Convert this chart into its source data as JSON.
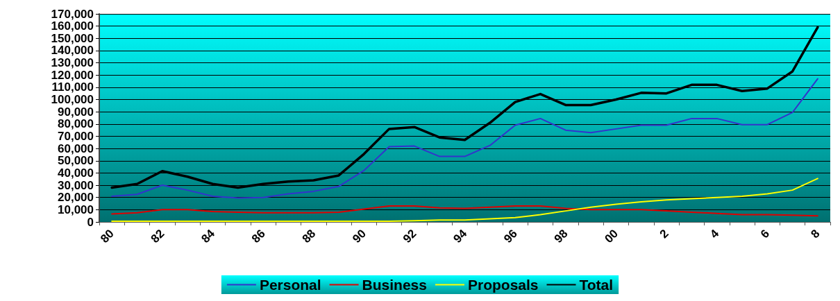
{
  "chart_data": {
    "type": "line",
    "categories": [
      "80",
      null,
      "82",
      null,
      "84",
      null,
      "86",
      null,
      "88",
      null,
      "90",
      null,
      "92",
      null,
      "94",
      null,
      "96",
      null,
      "98",
      null,
      "00",
      null,
      "2",
      null,
      "4",
      null,
      "6",
      null,
      "8"
    ],
    "series": [
      {
        "name": "Personal",
        "color": "#3333cc",
        "values": [
          21000,
          22500,
          30000,
          26000,
          21000,
          19500,
          20000,
          23000,
          25000,
          29000,
          42000,
          61500,
          62000,
          53500,
          53500,
          62500,
          79000,
          84500,
          75000,
          73000,
          76000,
          79000,
          79000,
          84500,
          84500,
          79500,
          79500,
          89500,
          117000
        ]
      },
      {
        "name": "Business",
        "color": "#e00000",
        "values": [
          6500,
          7500,
          10000,
          10000,
          8500,
          8000,
          7500,
          7500,
          7500,
          8000,
          10500,
          13000,
          13000,
          11500,
          11000,
          12000,
          13000,
          13000,
          11000,
          10000,
          10000,
          10000,
          9000,
          8000,
          7000,
          6000,
          6000,
          5500,
          5000
        ]
      },
      {
        "name": "Proposals",
        "color": "#ffff00",
        "values": [
          500,
          500,
          500,
          500,
          500,
          500,
          500,
          500,
          500,
          500,
          500,
          500,
          1000,
          1500,
          1500,
          2500,
          3500,
          6000,
          9000,
          12000,
          14500,
          16500,
          18000,
          19000,
          20000,
          21000,
          23000,
          26000,
          35500
        ]
      },
      {
        "name": "Total",
        "color": "#000000",
        "values": [
          28000,
          31000,
          41500,
          37000,
          31000,
          28000,
          31000,
          33000,
          34000,
          38000,
          55500,
          76000,
          77500,
          69000,
          67000,
          81000,
          98000,
          104500,
          95500,
          95500,
          100000,
          105500,
          105000,
          112000,
          112000,
          107000,
          109000,
          123000,
          159000
        ]
      }
    ],
    "ylim": [
      0,
      170000
    ],
    "yticks": [
      {
        "value": 0,
        "label": "0"
      },
      {
        "value": 10000,
        "label": "10,000"
      },
      {
        "value": 20000,
        "label": "20,000"
      },
      {
        "value": 30000,
        "label": "30,000"
      },
      {
        "value": 40000,
        "label": "40,000"
      },
      {
        "value": 50000,
        "label": "50,000"
      },
      {
        "value": 60000,
        "label": "60,000"
      },
      {
        "value": 70000,
        "label": "70,000"
      },
      {
        "value": 80000,
        "label": "80,000"
      },
      {
        "value": 90000,
        "label": "90,000"
      },
      {
        "value": 100000,
        "label": "100,000"
      },
      {
        "value": 110000,
        "label": "110,000"
      },
      {
        "value": 120000,
        "label": "120,000"
      },
      {
        "value": 130000,
        "label": "130,000"
      },
      {
        "value": 140000,
        "label": "140,000"
      },
      {
        "value": 150000,
        "label": "150,000"
      },
      {
        "value": 160000,
        "label": "160,000"
      },
      {
        "value": 170000,
        "label": "170,000"
      }
    ],
    "grid": "y",
    "legend": "bottom",
    "marker": "none",
    "line_style": "solid"
  }
}
